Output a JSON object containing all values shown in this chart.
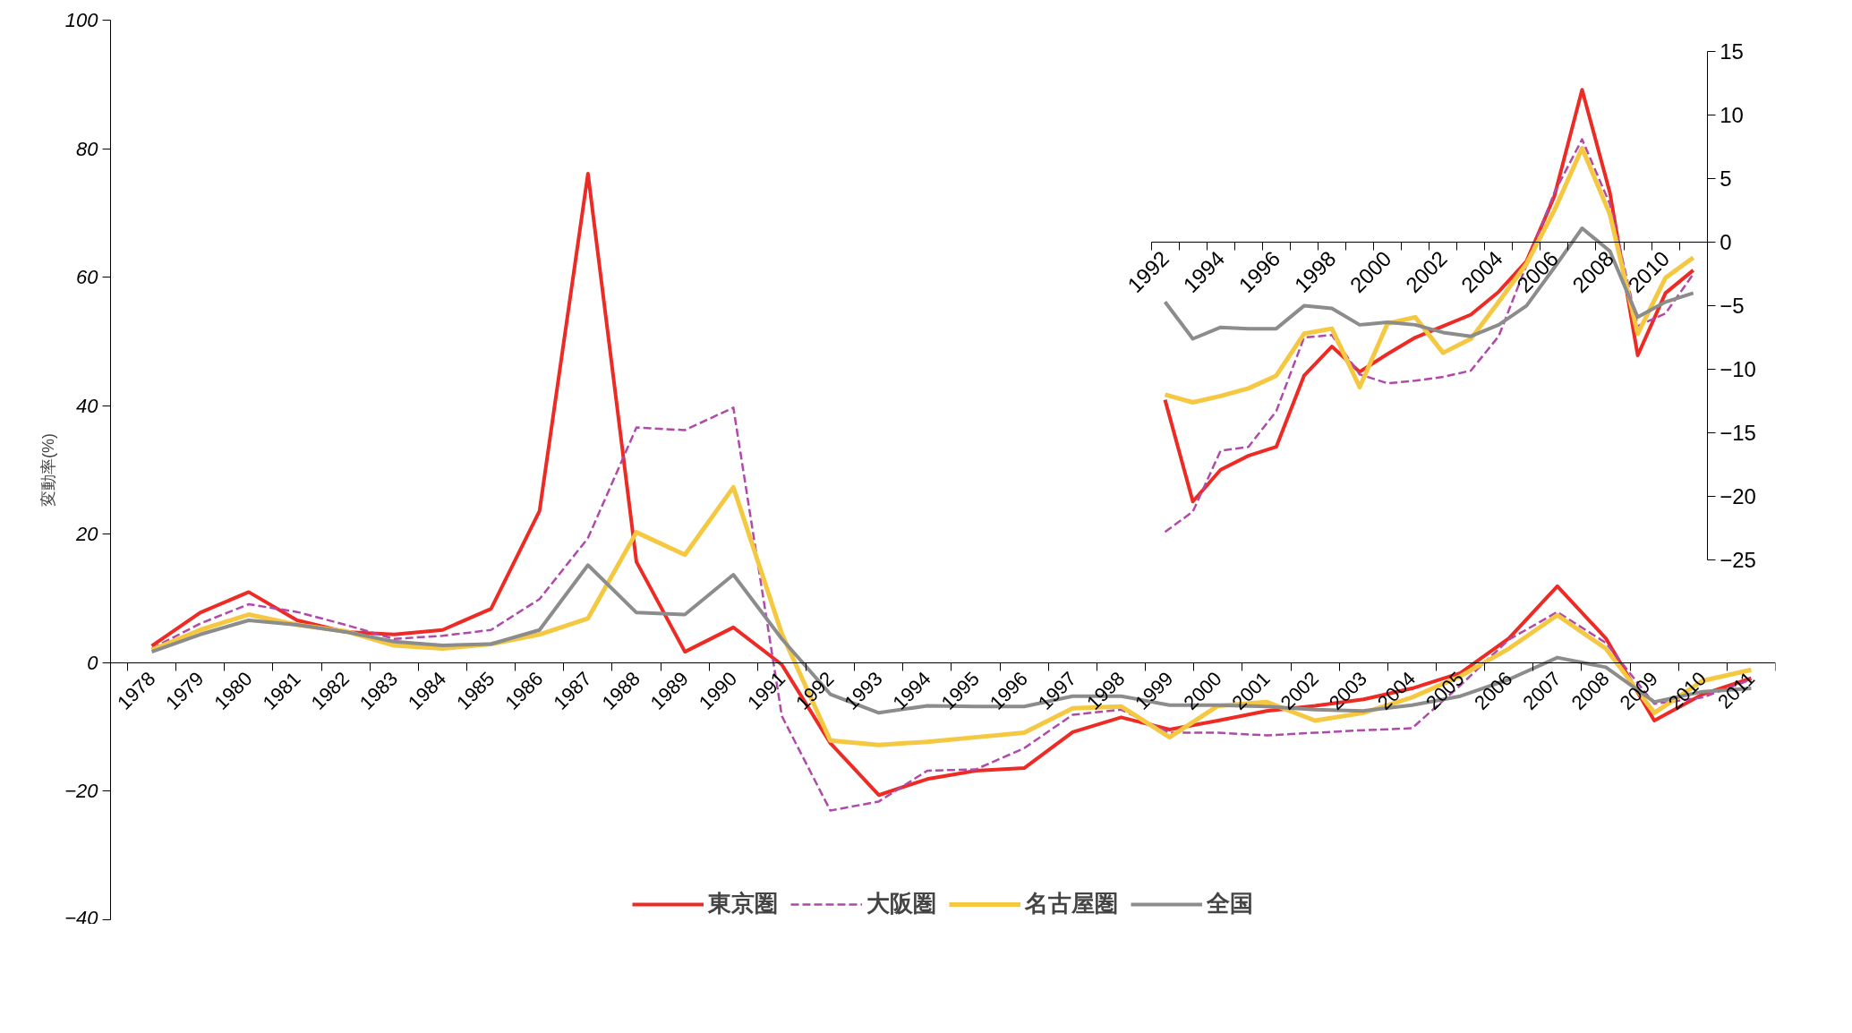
{
  "chart_data": [
    {
      "type": "line",
      "ylabel": "変動率(%)",
      "categories": [
        "1978",
        "1979",
        "1980",
        "1981",
        "1982",
        "1983",
        "1984",
        "1985",
        "1986",
        "1987",
        "1988",
        "1989",
        "1990",
        "1991",
        "1992",
        "1993",
        "1994",
        "1995",
        "1996",
        "1997",
        "1998",
        "1999",
        "2000",
        "2001",
        "2002",
        "2003",
        "2004",
        "2005",
        "2006",
        "2007",
        "2008",
        "2009",
        "2010",
        "2011"
      ],
      "series": [
        {
          "name": "東京圏",
          "color": "#ee2a24",
          "line_style": "solid",
          "values": [
            2.6,
            7.8,
            11.0,
            6.6,
            4.8,
            4.4,
            5.1,
            8.4,
            23.6,
            76.1,
            15.7,
            1.7,
            5.5,
            -0.3,
            -12.5,
            -20.6,
            -18.1,
            -16.8,
            -16.4,
            -10.8,
            -8.5,
            -10.4,
            -9.0,
            -7.5,
            -6.7,
            -5.7,
            -4.0,
            -1.6,
            3.8,
            11.9,
            3.8,
            -9.0,
            -4.9,
            -2.4
          ]
        },
        {
          "name": "大阪圏",
          "color": "#b04aa8",
          "line_style": "dashed",
          "values": [
            2.2,
            6.1,
            9.1,
            7.9,
            5.9,
            3.7,
            4.2,
            5.1,
            9.9,
            19.4,
            36.6,
            36.2,
            39.7,
            -8.3,
            -23.0,
            -21.6,
            -16.8,
            -16.6,
            -13.3,
            -8.1,
            -7.3,
            -10.9,
            -10.9,
            -11.3,
            -10.9,
            -10.5,
            -10.2,
            -3.5,
            3.6,
            7.9,
            3.1,
            -6.4,
            -5.4,
            -2.6
          ]
        },
        {
          "name": "名古屋圏",
          "color": "#f5c842",
          "line_style": "solid",
          "values": [
            2.0,
            5.1,
            7.5,
            5.9,
            4.9,
            2.7,
            2.2,
            2.9,
            4.4,
            6.9,
            20.3,
            16.8,
            27.3,
            4.5,
            -12.1,
            -12.8,
            -12.3,
            -11.6,
            -10.9,
            -7.1,
            -6.8,
            -11.6,
            -6.7,
            -6.1,
            -9.0,
            -7.8,
            -5.4,
            -2.1,
            2.2,
            7.4,
            2.2,
            -7.8,
            -2.8,
            -1.1
          ]
        },
        {
          "name": "全国",
          "color": "#8c8c8c",
          "line_style": "solid",
          "values": [
            1.7,
            4.4,
            6.6,
            5.9,
            4.8,
            3.3,
            2.7,
            2.9,
            5.1,
            15.2,
            7.8,
            7.5,
            13.7,
            3.7,
            -4.9,
            -7.8,
            -6.7,
            -6.8,
            -6.8,
            -5.2,
            -5.2,
            -6.6,
            -6.6,
            -6.8,
            -7.3,
            -7.5,
            -6.6,
            -5.2,
            -2.6,
            0.8,
            -0.7,
            -6.1,
            -4.5,
            -4.0
          ]
        }
      ],
      "ylim": [
        -40,
        100
      ],
      "yticks": [
        -40,
        -20,
        0,
        20,
        40,
        60,
        80,
        100
      ],
      "legend": "bottom",
      "grid": false
    },
    {
      "type": "line",
      "categories": [
        "1992",
        null,
        "1994",
        null,
        "1996",
        null,
        "1998",
        null,
        "2000",
        null,
        "2002",
        null,
        "2004",
        null,
        "2006",
        null,
        "2008",
        null,
        "2010",
        null
      ],
      "series": [
        {
          "color": "#ee2a24",
          "line_style": "solid",
          "values": [
            -12.4,
            -20.4,
            -17.9,
            -16.8,
            -16.1,
            -10.5,
            -8.2,
            -10.2,
            -8.8,
            -7.5,
            -6.6,
            -5.7,
            -3.9,
            -1.5,
            3.6,
            12.0,
            3.9,
            -8.9,
            -4.0,
            -2.2
          ]
        },
        {
          "color": "#b04aa8",
          "line_style": "dashed",
          "values": [
            -22.8,
            -21.2,
            -16.4,
            -16.1,
            -13.3,
            -7.5,
            -7.3,
            -10.4,
            -11.1,
            -10.9,
            -10.6,
            -10.1,
            -7.4,
            -1.8,
            3.9,
            8.1,
            3.0,
            -6.6,
            -5.6,
            -2.5
          ]
        },
        {
          "color": "#f5c842",
          "line_style": "solid",
          "values": [
            -12.0,
            -12.6,
            -12.1,
            -11.5,
            -10.5,
            -7.2,
            -6.8,
            -11.4,
            -6.4,
            -5.9,
            -8.7,
            -7.6,
            -4.7,
            -1.7,
            2.5,
            7.4,
            2.2,
            -7.2,
            -2.8,
            -1.2
          ]
        },
        {
          "color": "#8c8c8c",
          "line_style": "solid",
          "values": [
            -4.7,
            -7.6,
            -6.7,
            -6.8,
            -6.8,
            -5.0,
            -5.2,
            -6.5,
            -6.3,
            -6.5,
            -7.1,
            -7.4,
            -6.5,
            -5.0,
            -2.0,
            1.1,
            -0.7,
            -5.9,
            -4.7,
            -4.0
          ]
        }
      ],
      "ylim": [
        -25,
        15
      ],
      "yticks": [
        -25,
        -20,
        -15,
        -10,
        -5,
        0,
        5,
        10,
        15
      ],
      "grid": false
    }
  ]
}
